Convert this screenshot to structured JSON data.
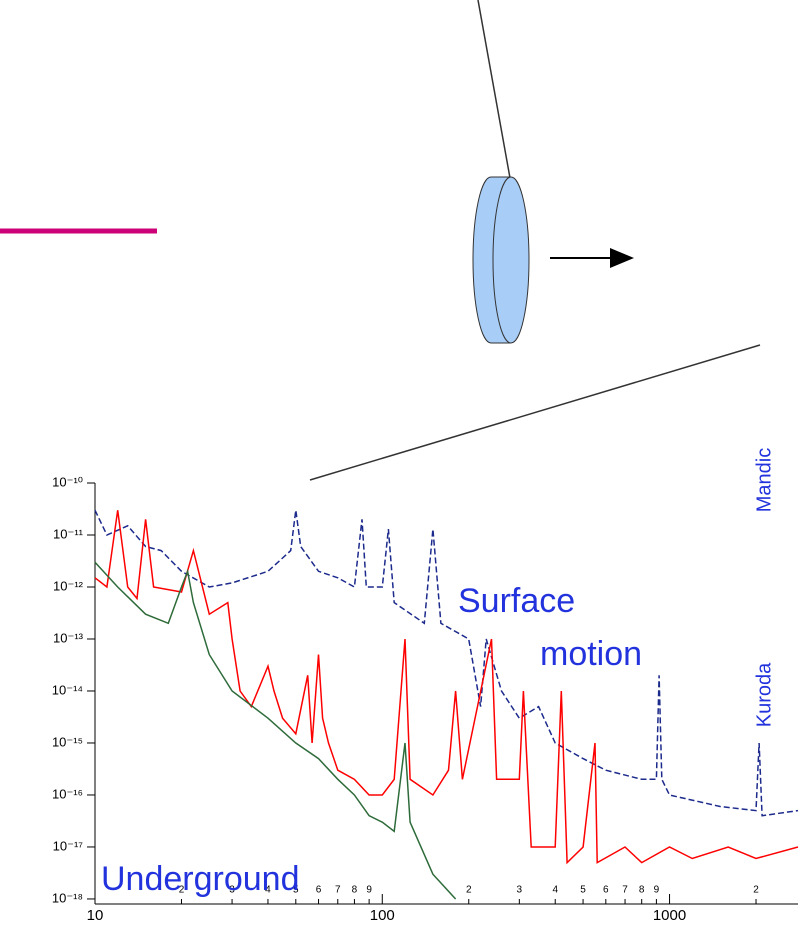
{
  "chart_data": {
    "type": "line",
    "log_x": true,
    "log_y": true,
    "xlim": [
      10,
      2800
    ],
    "ylim": [
      8e-19,
      1e-10
    ],
    "xticks": [
      10,
      {
        "value": 20,
        "label": "2"
      },
      {
        "value": 30,
        "label": "3"
      },
      {
        "value": 40,
        "label": "4"
      },
      {
        "value": 50,
        "label": "5"
      },
      {
        "value": 60,
        "label": "6"
      },
      {
        "value": 70,
        "label": "7"
      },
      {
        "value": 80,
        "label": "8"
      },
      {
        "value": 90,
        "label": "9"
      },
      100,
      {
        "value": 200,
        "label": "2"
      },
      {
        "value": 300,
        "label": "3"
      },
      {
        "value": 400,
        "label": "4"
      },
      {
        "value": 500,
        "label": "5"
      },
      {
        "value": 600,
        "label": "6"
      },
      {
        "value": 700,
        "label": "7"
      },
      {
        "value": 800,
        "label": "8"
      },
      {
        "value": 900,
        "label": "9"
      },
      1000,
      {
        "value": 2000,
        "label": "2"
      }
    ],
    "yticks": [
      {
        "value": 1e-10,
        "label": "10⁻¹⁰"
      },
      {
        "value": 1e-11,
        "label": "10⁻¹¹"
      },
      {
        "value": 1e-12,
        "label": "10⁻¹²"
      },
      {
        "value": 1e-13,
        "label": "10⁻¹³"
      },
      {
        "value": 1e-14,
        "label": "10⁻¹⁴"
      },
      {
        "value": 1e-15,
        "label": "10⁻¹⁵"
      },
      {
        "value": 1e-16,
        "label": "10⁻¹⁶"
      },
      {
        "value": 1e-17,
        "label": "10⁻¹⁷"
      },
      {
        "value": 1e-18,
        "label": "10⁻¹⁸"
      }
    ],
    "series": [
      {
        "color": "#1c2a8c",
        "dashed": true,
        "x": [
          10,
          11,
          13,
          15,
          17,
          20,
          25,
          30,
          40,
          48,
          50,
          52,
          60,
          70,
          80,
          85,
          88,
          100,
          105,
          110,
          140,
          150,
          160,
          200,
          220,
          230,
          260,
          300,
          350,
          400,
          500,
          600,
          800,
          900,
          920,
          940,
          1000,
          1500,
          2000,
          2050,
          2100,
          2800
        ],
        "values": [
          3e-11,
          1e-11,
          1.5e-11,
          6e-12,
          5e-12,
          2e-12,
          1e-12,
          1.2e-12,
          2e-12,
          5e-12,
          3e-11,
          6e-12,
          2e-12,
          1.5e-12,
          1e-12,
          2e-11,
          1e-12,
          1e-12,
          1.3e-11,
          5e-13,
          2e-13,
          1.3e-11,
          2e-13,
          1e-13,
          5e-15,
          1e-13,
          1e-14,
          3e-15,
          5e-15,
          1e-15,
          5e-16,
          3e-16,
          2e-16,
          2e-16,
          2e-14,
          2e-16,
          1e-16,
          6e-17,
          5e-17,
          1e-15,
          4e-17,
          5e-17
        ]
      },
      {
        "color": "#ff0000",
        "dashed": false,
        "x": [
          10,
          11,
          12,
          13,
          14,
          15,
          16,
          20,
          22,
          25,
          29,
          30,
          32,
          35,
          40,
          42,
          45,
          50,
          55,
          57,
          60,
          62,
          65,
          70,
          80,
          90,
          100,
          110,
          120,
          125,
          150,
          170,
          180,
          190,
          240,
          250,
          300,
          310,
          330,
          400,
          420,
          440,
          500,
          550,
          560,
          700,
          800,
          1000,
          1200,
          1600,
          2000,
          2800
        ],
        "values": [
          1.5e-12,
          1e-12,
          3e-11,
          1e-12,
          6e-13,
          2e-11,
          1e-12,
          8e-13,
          5e-12,
          3e-13,
          5e-13,
          1e-13,
          1e-14,
          5e-15,
          3e-14,
          1e-14,
          3e-15,
          1.5e-15,
          2e-14,
          1e-15,
          5e-14,
          3e-15,
          1e-15,
          3e-16,
          2e-16,
          1e-16,
          1e-16,
          2e-16,
          1e-13,
          2e-16,
          1e-16,
          3e-16,
          1e-14,
          2e-16,
          1e-13,
          2e-16,
          2e-16,
          1e-14,
          1e-17,
          1e-17,
          1e-14,
          5e-18,
          1e-17,
          1e-15,
          5e-18,
          1e-17,
          5e-18,
          1e-17,
          6e-18,
          1e-17,
          6e-18,
          1e-17
        ]
      },
      {
        "color": "#2e6b3a",
        "dashed": false,
        "x": [
          10,
          12,
          15,
          18,
          20,
          21,
          22,
          25,
          30,
          40,
          50,
          60,
          70,
          80,
          90,
          100,
          110,
          120,
          125,
          150,
          180
        ],
        "values": [
          3e-12,
          1e-12,
          3e-13,
          2e-13,
          1e-12,
          2e-12,
          5e-13,
          5e-14,
          1e-14,
          3e-15,
          1e-15,
          5e-16,
          2e-16,
          1e-16,
          4e-17,
          3e-17,
          2e-17,
          1e-15,
          3e-17,
          3e-18,
          1e-18
        ]
      }
    ],
    "annotations": [
      "Surface",
      "motion",
      "Underground",
      "Mandic",
      "Kuroda"
    ]
  }
}
